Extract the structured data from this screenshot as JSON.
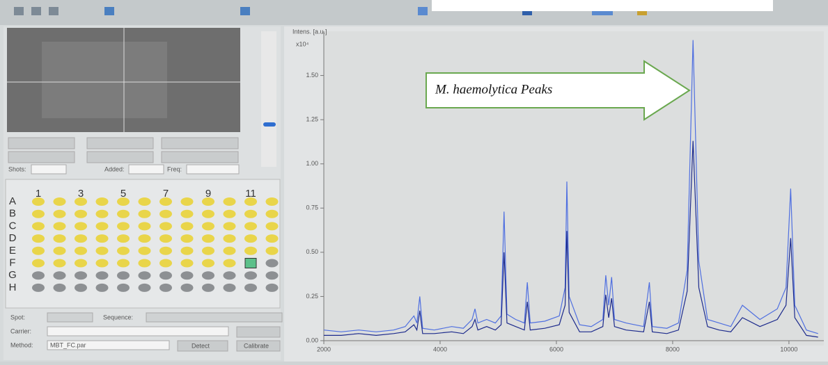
{
  "annotation": "M. haemolytica Peaks",
  "controls": {
    "shots": "Shots:",
    "added": "Added:",
    "freq": "Freq:",
    "spot": "Spot:",
    "sequence": "Sequence:",
    "carrier": "Carrier:",
    "method": "Method:",
    "method_value": "MBT_FC.par",
    "calibrate": "Calibrate",
    "detect": "Detect"
  },
  "plate": {
    "rows": [
      "A",
      "B",
      "C",
      "D",
      "E",
      "F",
      "G",
      "H"
    ],
    "columns": [
      1,
      3,
      5,
      7,
      9,
      11
    ]
  },
  "spectrum": {
    "type": "line",
    "y_label": "Intens. [a.u.]",
    "y_unit": "x10⁴",
    "xlim": [
      2000,
      10600
    ],
    "ylim": [
      0,
      1.75
    ],
    "xticks": [
      2000,
      4000,
      6000,
      8000,
      10000
    ],
    "yticks": [
      {
        "value": 0,
        "label": "0.00"
      },
      {
        "value": 0.25,
        "label": "0.25"
      },
      {
        "value": 0.5,
        "label": "0.50"
      },
      {
        "value": 0.75,
        "label": "0.75"
      },
      {
        "value": 1,
        "label": "1.00"
      },
      {
        "value": 1.25,
        "label": "1.25"
      },
      {
        "value": 1.5,
        "label": "1.50"
      }
    ],
    "x": [
      2000,
      2300,
      2600,
      2900,
      3200,
      3400,
      3550,
      3600,
      3650,
      3700,
      3900,
      4200,
      4400,
      4550,
      4600,
      4650,
      4800,
      4950,
      5050,
      5100,
      5150,
      5300,
      5450,
      5500,
      5550,
      5800,
      6050,
      6150,
      6180,
      6220,
      6400,
      6600,
      6800,
      6850,
      6900,
      6950,
      7000,
      7200,
      7500,
      7600,
      7650,
      7900,
      8100,
      8250,
      8350,
      8450,
      8600,
      8800,
      9000,
      9200,
      9500,
      9800,
      9950,
      10030,
      10100,
      10300,
      10500
    ],
    "series": [
      {
        "color": "#4f6fe0",
        "values": [
          0.06,
          0.05,
          0.06,
          0.05,
          0.06,
          0.08,
          0.14,
          0.1,
          0.25,
          0.07,
          0.06,
          0.08,
          0.07,
          0.12,
          0.18,
          0.1,
          0.12,
          0.1,
          0.14,
          0.73,
          0.15,
          0.12,
          0.1,
          0.33,
          0.1,
          0.11,
          0.14,
          0.3,
          0.9,
          0.25,
          0.09,
          0.08,
          0.12,
          0.37,
          0.2,
          0.36,
          0.12,
          0.1,
          0.08,
          0.33,
          0.08,
          0.07,
          0.1,
          0.4,
          1.7,
          0.45,
          0.12,
          0.1,
          0.08,
          0.2,
          0.12,
          0.18,
          0.3,
          0.86,
          0.2,
          0.06,
          0.04
        ]
      },
      {
        "color": "#1c2a8c",
        "values": [
          0.03,
          0.03,
          0.04,
          0.03,
          0.04,
          0.05,
          0.09,
          0.06,
          0.17,
          0.04,
          0.04,
          0.05,
          0.04,
          0.08,
          0.12,
          0.06,
          0.08,
          0.06,
          0.09,
          0.5,
          0.1,
          0.08,
          0.06,
          0.22,
          0.06,
          0.07,
          0.09,
          0.2,
          0.62,
          0.16,
          0.05,
          0.05,
          0.08,
          0.26,
          0.13,
          0.24,
          0.08,
          0.06,
          0.05,
          0.22,
          0.05,
          0.04,
          0.06,
          0.28,
          1.13,
          0.3,
          0.08,
          0.06,
          0.05,
          0.13,
          0.08,
          0.12,
          0.2,
          0.58,
          0.13,
          0.03,
          0.02
        ]
      }
    ]
  }
}
